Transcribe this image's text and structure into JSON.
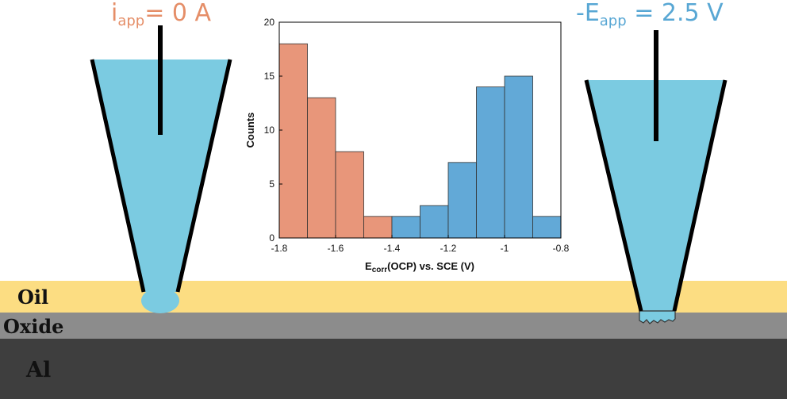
{
  "scene": {
    "layers": {
      "oil": {
        "label": "Oil",
        "color": "#fcdd82"
      },
      "oxide": {
        "label": "Oxide",
        "color": "#8c8c8c"
      },
      "al": {
        "label": "Al",
        "color": "#3e3e3e"
      }
    },
    "left_tip": {
      "label_main": "i",
      "label_sub": "app",
      "label_rest": "= 0 A",
      "label_color": "#e58e68",
      "liquid_color": "#7bcbe1"
    },
    "right_tip": {
      "label_main": "-E",
      "label_sub": "app",
      "label_rest": " = 2.5 V",
      "label_color": "#58a7d4",
      "liquid_color": "#7bcbe1"
    }
  },
  "chart_data": {
    "type": "bar",
    "xlabel_main": "E",
    "xlabel_sub": "corr",
    "xlabel_rest": "(OCP) vs. SCE (V)",
    "ylabel": "Counts",
    "xlim": [
      -1.8,
      -0.8
    ],
    "ylim": [
      0,
      20
    ],
    "xticks": [
      "-1.8",
      "-1.6",
      "-1.4",
      "-1.2",
      "-1",
      "-0.8"
    ],
    "xtick_values": [
      -1.8,
      -1.6,
      -1.4,
      -1.2,
      -1.0,
      -0.8
    ],
    "yticks": [
      "0",
      "5",
      "10",
      "15",
      "20"
    ],
    "ytick_values": [
      0,
      5,
      10,
      15,
      20
    ],
    "series": [
      {
        "color": "#e8967a",
        "bins": [
          {
            "x0": -1.8,
            "x1": -1.7,
            "value": 18
          },
          {
            "x0": -1.7,
            "x1": -1.6,
            "value": 13
          },
          {
            "x0": -1.6,
            "x1": -1.5,
            "value": 8
          },
          {
            "x0": -1.5,
            "x1": -1.4,
            "value": 2
          }
        ]
      },
      {
        "color": "#62a9d7",
        "bins": [
          {
            "x0": -1.4,
            "x1": -1.3,
            "value": 2
          },
          {
            "x0": -1.3,
            "x1": -1.2,
            "value": 3
          },
          {
            "x0": -1.2,
            "x1": -1.1,
            "value": 7
          },
          {
            "x0": -1.1,
            "x1": -1.0,
            "value": 14
          },
          {
            "x0": -1.0,
            "x1": -0.9,
            "value": 15
          },
          {
            "x0": -0.9,
            "x1": -0.8,
            "value": 2
          }
        ]
      }
    ]
  }
}
